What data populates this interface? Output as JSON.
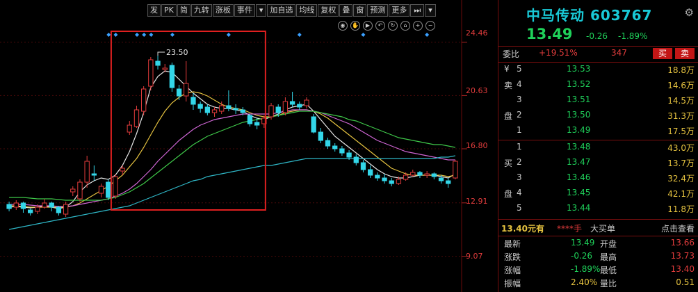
{
  "toolbar": {
    "buttons": [
      "发",
      "PK",
      "简",
      "九转",
      "涨板",
      "事件",
      "▾",
      "加自选",
      "均线",
      "复权",
      "叠",
      "窗",
      "预测",
      "更多",
      "⏭",
      "▾"
    ]
  },
  "chart": {
    "price_levels": [
      "24.46",
      "20.63",
      "16.80",
      "12.91",
      "9.07"
    ],
    "annotation_high": "23.50",
    "colors": {
      "up": "#e23c3c",
      "down": "#33d6e8",
      "ma5": "#e6e6e6",
      "ma10": "#e6c340",
      "ma20": "#d066d6",
      "ma30": "#3fc94a",
      "ma60": "#2fb8c8"
    }
  },
  "chart_data": {
    "type": "candlestick",
    "title": "",
    "ylim": [
      7.5,
      25.5
    ],
    "y_ticks": [
      24.46,
      20.63,
      16.8,
      12.91,
      9.07
    ],
    "annotations": [
      {
        "label": "23.50",
        "value": 23.5
      }
    ],
    "candles": [
      {
        "o": 12.8,
        "c": 12.5,
        "h": 13.0,
        "l": 12.3
      },
      {
        "o": 12.6,
        "c": 12.9,
        "h": 13.1,
        "l": 12.4
      },
      {
        "o": 12.9,
        "c": 12.5,
        "h": 13.0,
        "l": 12.2
      },
      {
        "o": 12.4,
        "c": 12.2,
        "h": 12.5,
        "l": 12.0
      },
      {
        "o": 12.3,
        "c": 12.6,
        "h": 12.8,
        "l": 12.1
      },
      {
        "o": 12.6,
        "c": 12.9,
        "h": 13.2,
        "l": 12.5
      },
      {
        "o": 12.9,
        "c": 12.6,
        "h": 13.0,
        "l": 12.3
      },
      {
        "o": 12.6,
        "c": 12.2,
        "h": 12.7,
        "l": 12.0
      },
      {
        "o": 12.1,
        "c": 12.8,
        "h": 13.0,
        "l": 11.9
      },
      {
        "o": 13.7,
        "c": 13.9,
        "h": 14.1,
        "l": 13.4
      },
      {
        "o": 13.2,
        "c": 14.4,
        "h": 14.6,
        "l": 13.0
      },
      {
        "o": 14.4,
        "c": 15.9,
        "h": 16.3,
        "l": 14.0
      },
      {
        "o": 15.0,
        "c": 14.9,
        "h": 15.6,
        "l": 14.5
      },
      {
        "o": 13.6,
        "c": 14.1,
        "h": 14.3,
        "l": 13.3
      },
      {
        "o": 14.4,
        "c": 13.3,
        "h": 14.6,
        "l": 13.1
      },
      {
        "o": 13.4,
        "c": 14.8,
        "h": 15.0,
        "l": 13.2
      },
      {
        "o": 15.2,
        "c": 15.4,
        "h": 15.6,
        "l": 14.9
      },
      {
        "o": 18.0,
        "c": 18.5,
        "h": 18.8,
        "l": 17.8
      },
      {
        "o": 18.4,
        "c": 19.6,
        "h": 19.9,
        "l": 18.3
      },
      {
        "o": 19.5,
        "c": 21.1,
        "h": 21.3,
        "l": 19.2
      },
      {
        "o": 21.3,
        "c": 23.2,
        "h": 23.4,
        "l": 21.0
      },
      {
        "o": 23.1,
        "c": 22.8,
        "h": 23.5,
        "l": 22.5
      },
      {
        "o": 22.5,
        "c": 22.6,
        "h": 22.9,
        "l": 22.3
      },
      {
        "o": 22.8,
        "c": 21.2,
        "h": 23.0,
        "l": 20.9
      },
      {
        "o": 21.1,
        "c": 20.6,
        "h": 21.4,
        "l": 20.3
      },
      {
        "o": 20.6,
        "c": 21.5,
        "h": 23.1,
        "l": 20.2
      },
      {
        "o": 20.5,
        "c": 20.0,
        "h": 20.8,
        "l": 19.6
      },
      {
        "o": 20.0,
        "c": 19.7,
        "h": 20.2,
        "l": 19.4
      },
      {
        "o": 19.8,
        "c": 19.4,
        "h": 20.0,
        "l": 19.2
      },
      {
        "o": 19.4,
        "c": 19.6,
        "h": 19.8,
        "l": 19.1
      },
      {
        "o": 19.5,
        "c": 19.9,
        "h": 20.2,
        "l": 19.3
      },
      {
        "o": 19.9,
        "c": 19.7,
        "h": 21.0,
        "l": 19.5
      },
      {
        "o": 19.7,
        "c": 19.6,
        "h": 20.0,
        "l": 19.3
      },
      {
        "o": 19.6,
        "c": 19.4,
        "h": 19.8,
        "l": 19.2
      },
      {
        "o": 19.2,
        "c": 18.6,
        "h": 19.3,
        "l": 18.4
      },
      {
        "o": 18.7,
        "c": 18.5,
        "h": 19.0,
        "l": 18.2
      },
      {
        "o": 18.6,
        "c": 19.0,
        "h": 19.2,
        "l": 18.3
      },
      {
        "o": 19.1,
        "c": 19.9,
        "h": 20.1,
        "l": 18.9
      },
      {
        "o": 19.8,
        "c": 19.4,
        "h": 20.0,
        "l": 19.1
      },
      {
        "o": 19.4,
        "c": 20.2,
        "h": 20.5,
        "l": 19.2
      },
      {
        "o": 20.2,
        "c": 20.0,
        "h": 20.9,
        "l": 19.8
      },
      {
        "o": 20.0,
        "c": 19.8,
        "h": 20.2,
        "l": 19.6
      },
      {
        "o": 19.9,
        "c": 20.3,
        "h": 20.5,
        "l": 19.7
      },
      {
        "o": 19.1,
        "c": 18.0,
        "h": 19.3,
        "l": 17.9
      },
      {
        "o": 18.0,
        "c": 17.4,
        "h": 18.3,
        "l": 17.2
      },
      {
        "o": 17.4,
        "c": 17.0,
        "h": 17.6,
        "l": 16.8
      },
      {
        "o": 17.0,
        "c": 16.8,
        "h": 17.2,
        "l": 16.6
      },
      {
        "o": 16.8,
        "c": 16.5,
        "h": 17.0,
        "l": 16.3
      },
      {
        "o": 16.5,
        "c": 16.2,
        "h": 16.7,
        "l": 16.0
      },
      {
        "o": 16.2,
        "c": 15.8,
        "h": 16.4,
        "l": 15.6
      },
      {
        "o": 15.8,
        "c": 15.3,
        "h": 16.0,
        "l": 15.1
      },
      {
        "o": 15.3,
        "c": 14.9,
        "h": 15.6,
        "l": 14.7
      },
      {
        "o": 14.9,
        "c": 14.7,
        "h": 15.1,
        "l": 14.5
      },
      {
        "o": 14.7,
        "c": 14.5,
        "h": 15.0,
        "l": 14.3
      },
      {
        "o": 14.5,
        "c": 14.3,
        "h": 14.7,
        "l": 14.1
      },
      {
        "o": 14.3,
        "c": 14.6,
        "h": 14.8,
        "l": 14.2
      },
      {
        "o": 14.6,
        "c": 14.9,
        "h": 15.1,
        "l": 14.5
      },
      {
        "o": 14.9,
        "c": 15.1,
        "h": 15.3,
        "l": 14.8
      },
      {
        "o": 15.1,
        "c": 14.9,
        "h": 15.2,
        "l": 14.7
      },
      {
        "o": 14.9,
        "c": 15.0,
        "h": 15.2,
        "l": 14.7
      },
      {
        "o": 15.0,
        "c": 14.8,
        "h": 15.1,
        "l": 14.6
      },
      {
        "o": 14.7,
        "c": 14.5,
        "h": 14.9,
        "l": 14.3
      },
      {
        "o": 14.5,
        "c": 14.3,
        "h": 14.7,
        "l": 14.0
      },
      {
        "o": 14.7,
        "c": 15.9,
        "h": 16.0,
        "l": 14.6
      }
    ],
    "series": [
      {
        "values": [
          12.6,
          12.65,
          12.6,
          12.55,
          12.6,
          12.7,
          12.6,
          12.5,
          12.6,
          13.0,
          13.7,
          14.2,
          14.5,
          14.7,
          14.6,
          14.9,
          15.6,
          16.6,
          17.9,
          19.4,
          21.2,
          22.0,
          22.4,
          22.3,
          21.8,
          21.3,
          20.8,
          20.4,
          20.0,
          19.8,
          19.7,
          19.7,
          19.6,
          19.5,
          19.2,
          19.0,
          18.9,
          19.1,
          19.3,
          19.6,
          19.8,
          19.9,
          20.0,
          19.5,
          18.9,
          18.3,
          17.7,
          17.3,
          16.9,
          16.5,
          16.1,
          15.7,
          15.3,
          15.0,
          14.8,
          14.7,
          14.7,
          14.8,
          14.9,
          14.9,
          14.9,
          14.8,
          14.7,
          15.0
        ]
      },
      {
        "values": [
          12.7,
          12.7,
          12.65,
          12.6,
          12.6,
          12.6,
          12.6,
          12.6,
          12.6,
          12.7,
          12.9,
          13.2,
          13.5,
          13.8,
          14.1,
          14.5,
          14.9,
          15.5,
          16.1,
          16.9,
          17.8,
          18.7,
          19.5,
          20.1,
          20.5,
          20.8,
          20.9,
          20.8,
          20.6,
          20.3,
          20.0,
          19.8,
          19.7,
          19.6,
          19.4,
          19.2,
          19.1,
          19.1,
          19.2,
          19.4,
          19.5,
          19.6,
          19.6,
          19.5,
          19.3,
          19.0,
          18.6,
          18.2,
          17.8,
          17.4,
          17.0,
          16.6,
          16.2,
          15.8,
          15.4,
          15.2,
          15.0,
          14.9,
          14.9,
          14.9,
          14.9,
          14.9,
          14.8,
          14.9
        ]
      },
      {
        "values": [
          12.8,
          12.8,
          12.8,
          12.75,
          12.7,
          12.7,
          12.7,
          12.65,
          12.65,
          12.7,
          12.8,
          12.9,
          13.0,
          13.1,
          13.2,
          13.4,
          13.6,
          13.9,
          14.3,
          14.8,
          15.3,
          15.9,
          16.4,
          16.9,
          17.4,
          17.8,
          18.2,
          18.5,
          18.7,
          18.9,
          19.0,
          19.1,
          19.2,
          19.3,
          19.3,
          19.3,
          19.3,
          19.3,
          19.4,
          19.5,
          19.6,
          19.6,
          19.6,
          19.5,
          19.4,
          19.2,
          19.0,
          18.8,
          18.6,
          18.3,
          18.0,
          17.7,
          17.4,
          17.2,
          17.0,
          16.8,
          16.6,
          16.5,
          16.4,
          16.3,
          16.2,
          16.1,
          16.0,
          16.0
        ]
      },
      {
        "values": [
          13.3,
          13.3,
          13.3,
          13.25,
          13.2,
          13.2,
          13.2,
          13.15,
          13.1,
          13.1,
          13.1,
          13.1,
          13.1,
          13.1,
          13.2,
          13.3,
          13.5,
          13.7,
          14.0,
          14.3,
          14.7,
          15.1,
          15.5,
          15.9,
          16.3,
          16.7,
          17.1,
          17.4,
          17.7,
          17.9,
          18.1,
          18.3,
          18.5,
          18.7,
          18.8,
          18.9,
          19.0,
          19.1,
          19.2,
          19.3,
          19.4,
          19.5,
          19.5,
          19.5,
          19.4,
          19.3,
          19.2,
          19.1,
          18.9,
          18.8,
          18.6,
          18.4,
          18.2,
          18.0,
          17.8,
          17.6,
          17.5,
          17.4,
          17.3,
          17.2,
          17.1,
          17.1,
          17.0,
          16.9
        ]
      },
      {
        "values": [
          11.0,
          11.1,
          11.2,
          11.3,
          11.4,
          11.5,
          11.6,
          11.7,
          11.8,
          11.9,
          12.0,
          12.1,
          12.2,
          12.3,
          12.4,
          12.5,
          12.6,
          12.7,
          12.9,
          13.1,
          13.3,
          13.5,
          13.7,
          13.9,
          14.1,
          14.3,
          14.5,
          14.6,
          14.8,
          14.9,
          15.0,
          15.1,
          15.2,
          15.3,
          15.4,
          15.5,
          15.6,
          15.6,
          15.7,
          15.8,
          15.9,
          16.0,
          16.1,
          16.1,
          16.1,
          16.1,
          16.1,
          16.1,
          16.1,
          16.1,
          16.1,
          16.1,
          16.1,
          16.1,
          16.1,
          16.1,
          16.1,
          16.1,
          16.1,
          16.1,
          16.1,
          16.2,
          16.2,
          16.3
        ]
      }
    ]
  },
  "quote": {
    "title": "中马传动 603767",
    "last_price": "13.49",
    "change": "-0.26",
    "change_pct": "-1.89%",
    "weibi_label": "委比",
    "weibi": "+19.51%",
    "weicha": "347",
    "buy_label": "买",
    "sell_label": "卖",
    "asks": [
      {
        "side": "¥",
        "level": "5",
        "price": "13.53",
        "vol": "18.8万"
      },
      {
        "side": "卖",
        "level": "4",
        "price": "13.52",
        "vol": "14.6万"
      },
      {
        "side": "",
        "level": "3",
        "price": "13.51",
        "vol": "14.5万"
      },
      {
        "side": "盘",
        "level": "2",
        "price": "13.50",
        "vol": "31.3万"
      },
      {
        "side": "",
        "level": "1",
        "price": "13.49",
        "vol": "17.5万"
      }
    ],
    "bids": [
      {
        "side": "",
        "level": "1",
        "price": "13.48",
        "vol": "43.0万"
      },
      {
        "side": "买",
        "level": "2",
        "price": "13.47",
        "vol": "13.7万"
      },
      {
        "side": "",
        "level": "3",
        "price": "13.46",
        "vol": "32.4万"
      },
      {
        "side": "盘",
        "level": "4",
        "price": "13.45",
        "vol": "42.1万"
      },
      {
        "side": "",
        "level": "5",
        "price": "13.44",
        "vol": "11.8万"
      }
    ],
    "big_order": {
      "text": "13.40元有",
      "stars": "****手",
      "type": "大买单",
      "link": "点击查看"
    },
    "stats": [
      {
        "l1": "最新",
        "v1": "13.49",
        "l2": "开盘",
        "v2": "13.66",
        "c1": "#1fd15a",
        "c2": "#e23c3c"
      },
      {
        "l1": "涨跌",
        "v1": "-0.26",
        "l2": "最高",
        "v2": "13.73",
        "c1": "#1fd15a",
        "c2": "#e23c3c"
      },
      {
        "l1": "涨幅",
        "v1": "-1.89%",
        "l2": "最低",
        "v2": "13.40",
        "c1": "#1fd15a",
        "c2": "#e23c3c"
      },
      {
        "l1": "振幅",
        "v1": "2.40%",
        "l2": "量比",
        "v2": "0.51",
        "c1": "#e6c340",
        "c2": "#e6c340"
      }
    ]
  }
}
